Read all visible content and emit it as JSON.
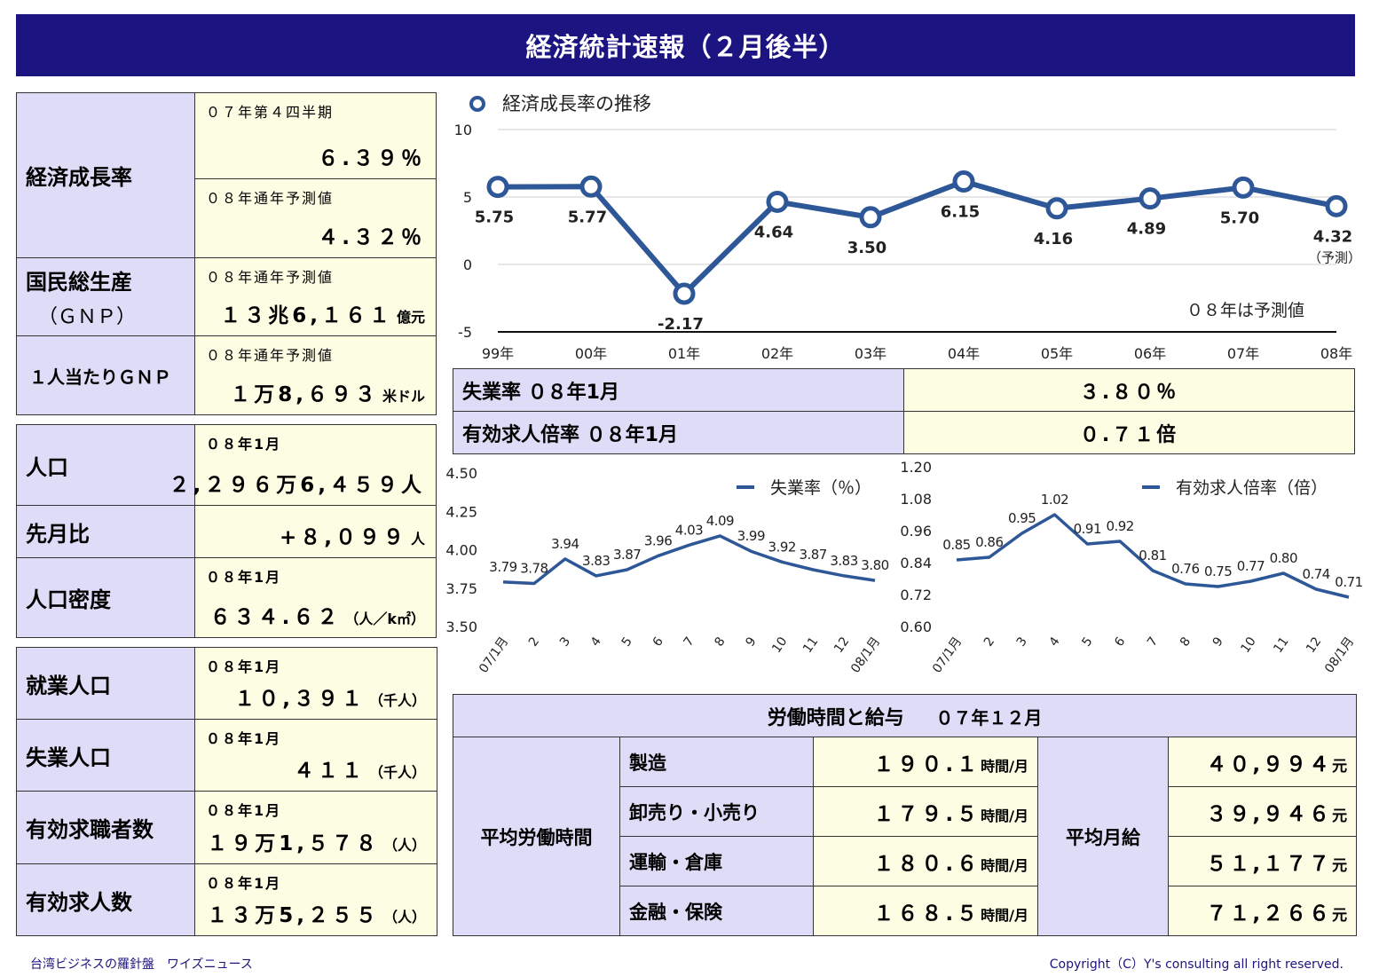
{
  "title": "経済統計速報（２月後半）",
  "econ": {
    "label": "経済成長率",
    "q_sub": "０７年第４四半期",
    "q_val": "６.３９％",
    "f_sub": "０８年通年予測値",
    "f_val": "４.３２％"
  },
  "gnp": {
    "label1": "国民総生産",
    "label2": "（ＧＮＰ）",
    "sub": "０８年通年予測値",
    "val": "１３兆6,１６１",
    "unit": "億元"
  },
  "gnp_per": {
    "label": "１人当たりＧＮＰ",
    "sub": "０８年通年予測値",
    "val": "１万8,６９３",
    "unit": "米ドル"
  },
  "population": [
    {
      "label": "人口",
      "sub": "０８年1月",
      "val": "２,２９６万6,４５９人",
      "unit": ""
    },
    {
      "label": "先月比",
      "sub": "",
      "val": "+８,０９９",
      "unit": "人"
    },
    {
      "label": "人口密度",
      "sub": "０８年1月",
      "val": "６３４.６２",
      "unit": "（人／k㎡）"
    }
  ],
  "employment": [
    {
      "label": "就業人口",
      "sub": "０８年1月",
      "val": "１０,３９１",
      "unit": "（千人）"
    },
    {
      "label": "失業人口",
      "sub": "０８年1月",
      "val": "４１１",
      "unit": "（千人）"
    },
    {
      "label": "有効求職者数",
      "sub": "０８年1月",
      "val": "１９万1,５７８",
      "unit": "（人）"
    },
    {
      "label": "有効求人数",
      "sub": "０８年1月",
      "val": "１３万5,２５５",
      "unit": "（人）"
    }
  ],
  "rates": [
    {
      "label": "失業率 ０８年1月",
      "val": "３.８０％"
    },
    {
      "label": "有効求人倍率 ０８年1月",
      "val": "０.７１倍"
    }
  ],
  "wage": {
    "title": "労働時間と給与",
    "period": "０７年１２月",
    "hours_label": "平均労働時間",
    "pay_label": "平均月給",
    "rows": [
      {
        "sector": "製造",
        "hours": "１９０.１",
        "hours_unit": "時間/月",
        "pay": "４０,９９４",
        "pay_unit": "元"
      },
      {
        "sector": "卸売り・小売り",
        "hours": "１７９.５",
        "hours_unit": "時間/月",
        "pay": "３９,９４６",
        "pay_unit": "元"
      },
      {
        "sector": "運輸・倉庫",
        "hours": "１８０.６",
        "hours_unit": "時間/月",
        "pay": "５１,１７７",
        "pay_unit": "元"
      },
      {
        "sector": "金融・保険",
        "hours": "１６８.５",
        "hours_unit": "時間/月",
        "pay": "７１,２６６",
        "pay_unit": "元"
      }
    ]
  },
  "footer": {
    "left": "台湾ビジネスの羅針盤　ワイズニュース",
    "right": "Copyright（C）Y's consulting all right reserved."
  },
  "colors": {
    "title_bg": "#1c1480",
    "label_bg": "#dedcf7",
    "value_bg": "#fdfde4",
    "series": "#2e5797"
  },
  "chart_data": [
    {
      "type": "line",
      "legend": "経済成長率の推移",
      "categories": [
        "99年",
        "00年",
        "01年",
        "02年",
        "03年",
        "04年",
        "05年",
        "06年",
        "07年",
        "08年"
      ],
      "values": [
        5.75,
        5.77,
        -2.17,
        4.64,
        3.5,
        6.15,
        4.16,
        4.89,
        5.7,
        4.32
      ],
      "value_labels": [
        "5.75",
        "5.77",
        "-2.17",
        "4.64",
        "3.50",
        "6.15",
        "4.16",
        "4.89",
        "5.70",
        "4.32"
      ],
      "last_note": "（予測）",
      "annotation": "０８年は予測値",
      "ylim": [
        -5,
        10
      ],
      "yticks": [
        "10",
        "5",
        "0",
        "-5"
      ],
      "grid": true,
      "legend_position": "top-left"
    },
    {
      "type": "line",
      "legend": "失業率（％）",
      "categories": [
        "07/1月",
        "2",
        "3",
        "4",
        "5",
        "6",
        "7",
        "8",
        "9",
        "10",
        "11",
        "12",
        "08/1月"
      ],
      "values": [
        3.79,
        3.78,
        3.94,
        3.83,
        3.87,
        3.96,
        4.03,
        4.09,
        3.99,
        3.92,
        3.87,
        3.83,
        3.8
      ],
      "value_labels": [
        "3.79",
        "3.78",
        "3.94",
        "3.83",
        "3.87",
        "3.96",
        "4.03",
        "4.09",
        "3.99",
        "3.92",
        "3.87",
        "3.83",
        "3.80"
      ],
      "ylim": [
        3.5,
        4.5
      ],
      "yticks": [
        "4.50",
        "4.25",
        "4.00",
        "3.75",
        "3.50"
      ],
      "grid": false,
      "legend_position": "top-right"
    },
    {
      "type": "line",
      "legend": "有効求人倍率（倍）",
      "categories": [
        "07/1月",
        "2",
        "3",
        "4",
        "5",
        "6",
        "7",
        "8",
        "9",
        "10",
        "11",
        "12",
        "08/1月"
      ],
      "values": [
        0.85,
        0.86,
        0.95,
        1.02,
        0.91,
        0.92,
        0.81,
        0.76,
        0.75,
        0.77,
        0.8,
        0.74,
        0.71
      ],
      "value_labels": [
        "0.85",
        "0.86",
        "0.95",
        "1.02",
        "0.91",
        "0.92",
        "0.81",
        "0.76",
        "0.75",
        "0.77",
        "0.80",
        "0.74",
        "0.71"
      ],
      "ylim": [
        0.6,
        1.2
      ],
      "yticks": [
        "1.20",
        "1.08",
        "0.96",
        "0.84",
        "0.72",
        "0.60"
      ],
      "grid": false,
      "legend_position": "top-right"
    }
  ]
}
